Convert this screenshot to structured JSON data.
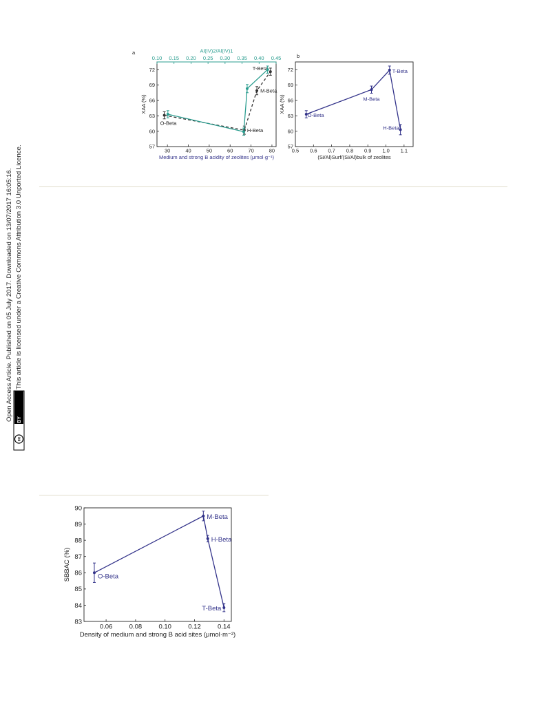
{
  "margin_note": {
    "line1": "Open Access Article. Published on 05 July 2017. Downloaded on 13/07/2017 16:05:16.",
    "line2": "This article is licensed under a Creative Commons Attribution 3.0 Unported Licence.",
    "badge_cc": "cc",
    "badge_by": "BY"
  },
  "colors": {
    "navy": "#33338a",
    "teal": "#2a9d8f",
    "dark": "#333333",
    "rule": "#e0dccb"
  },
  "chart_data": [
    {
      "id": "a",
      "type": "line",
      "panel_label": "a",
      "xlabel": "Medium and strong B acidity of zeolites (μmol·g⁻¹)",
      "x2label": "Al(IV)2/Al(IV)1",
      "ylabel": "XAA (%)",
      "xlim": [
        25,
        82
      ],
      "x2lim": [
        0.1,
        0.45
      ],
      "ylim": [
        57,
        73.5
      ],
      "xticks": [
        30,
        40,
        50,
        60,
        70,
        80
      ],
      "x2ticks": [
        0.1,
        0.15,
        0.2,
        0.25,
        0.3,
        0.35,
        0.4,
        0.45
      ],
      "yticks": [
        57,
        60,
        63,
        66,
        69,
        72
      ],
      "series": [
        {
          "axis": "bottom",
          "style": "dashed",
          "color": "#333333",
          "points": [
            {
              "x": 28.5,
              "y": 63.1,
              "err": 0.7,
              "label": "O-Beta"
            },
            {
              "x": 66.8,
              "y": 60.2,
              "err": 0.8,
              "label": "H-Beta"
            },
            {
              "x": 72.8,
              "y": 67.9,
              "err": 0.8,
              "label": "M-Beta"
            },
            {
              "x": 79.3,
              "y": 71.6,
              "err": 0.7,
              "label": "T-Beta"
            }
          ]
        },
        {
          "axis": "top",
          "style": "solid",
          "color": "#2a9d8f",
          "points": [
            {
              "x": 0.132,
              "y": 63.3,
              "err": 0.7
            },
            {
              "x": 0.355,
              "y": 59.9,
              "err": 0.7
            },
            {
              "x": 0.365,
              "y": 68.3,
              "err": 0.8
            },
            {
              "x": 0.425,
              "y": 72.0,
              "err": 0.7
            }
          ]
        }
      ]
    },
    {
      "id": "b",
      "type": "line",
      "panel_label": "b",
      "xlabel": "(Si/Al)Surf/(Si/Al)bulk of zeolites",
      "ylabel": "XAA (%)",
      "xlim": [
        0.5,
        1.15
      ],
      "ylim": [
        57,
        73.5
      ],
      "xticks": [
        0.5,
        0.6,
        0.7,
        0.8,
        0.9,
        1.0,
        1.1
      ],
      "yticks": [
        57,
        60,
        63,
        66,
        69,
        72
      ],
      "series": [
        {
          "color": "#33338a",
          "points": [
            {
              "x": 0.56,
              "y": 63.3,
              "err": 0.7,
              "label": "O-Beta"
            },
            {
              "x": 0.92,
              "y": 68.1,
              "err": 0.7,
              "label": "M-Beta"
            },
            {
              "x": 1.02,
              "y": 71.9,
              "err": 0.8,
              "label": "T-Beta"
            },
            {
              "x": 1.08,
              "y": 60.3,
              "err": 1.0,
              "label": "H-Beta"
            }
          ]
        }
      ]
    },
    {
      "id": "c",
      "type": "line",
      "xlabel": "Density of medium and strong B acid sites (μmol·m⁻²)",
      "ylabel": "SBBAC (%)",
      "xlim": [
        0.045,
        0.145
      ],
      "ylim": [
        83,
        90
      ],
      "xticks": [
        0.06,
        0.08,
        0.1,
        0.12,
        0.14
      ],
      "yticks": [
        83,
        84,
        85,
        86,
        87,
        88,
        89,
        90
      ],
      "series": [
        {
          "color": "#33338a",
          "points": [
            {
              "x": 0.052,
              "y": 86.0,
              "err": 0.6,
              "label": "O-Beta"
            },
            {
              "x": 0.126,
              "y": 89.5,
              "err": 0.3,
              "label": "M-Beta"
            },
            {
              "x": 0.129,
              "y": 88.1,
              "err": 0.2,
              "label": "H-Beta"
            },
            {
              "x": 0.14,
              "y": 83.85,
              "err": 0.25,
              "label": "T-Beta"
            }
          ]
        }
      ]
    }
  ]
}
